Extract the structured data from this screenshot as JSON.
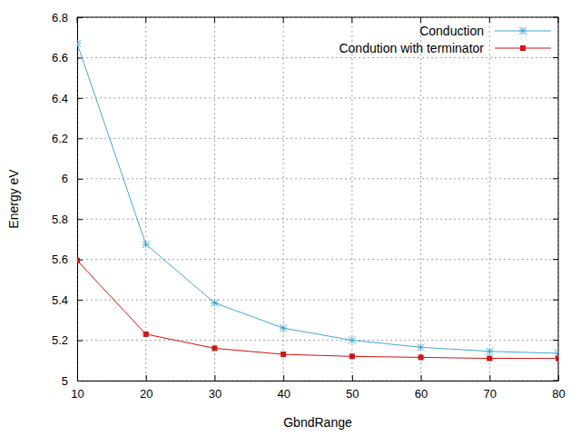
{
  "chart_data": {
    "type": "line",
    "x_label": "GbndRange",
    "y_label": "Energy eV",
    "x": [
      10,
      20,
      30,
      40,
      50,
      60,
      70,
      80
    ],
    "series": [
      {
        "name": "Conduction",
        "color": "#3fa8d8",
        "marker": "star",
        "line_style": "solid",
        "values": [
          6.67,
          5.675,
          5.385,
          5.26,
          5.2,
          5.165,
          5.145,
          5.135
        ]
      },
      {
        "name": "Condution with terminator",
        "color": "#d01414",
        "marker": "square",
        "line_style": "solid",
        "values": [
          5.595,
          5.23,
          5.16,
          5.13,
          5.12,
          5.115,
          5.11,
          5.11
        ]
      }
    ],
    "xlim": [
      10,
      80
    ],
    "xticks": [
      10,
      20,
      30,
      40,
      50,
      60,
      70,
      80
    ],
    "ylim": [
      5,
      6.8
    ],
    "yticks": [
      5,
      5.2,
      5.4,
      5.6,
      5.8,
      6,
      6.2,
      6.4,
      6.6,
      6.8
    ],
    "grid": true,
    "legend": "top-right"
  }
}
